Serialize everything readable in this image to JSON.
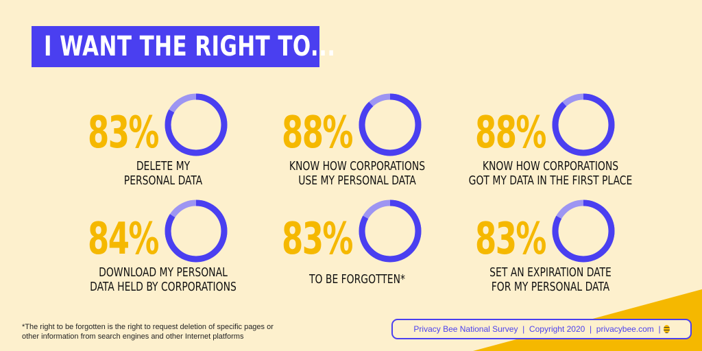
{
  "title": "I WANT THE RIGHT TO...",
  "colors": {
    "background": "#fdf0cd",
    "accent_blue": "#4a3ff0",
    "ring_light": "#9d95f2",
    "percent_yellow": "#f5b800"
  },
  "stats": [
    {
      "percent": "83%",
      "value": 83,
      "label_line1": "DELETE MY",
      "label_line2": "PERSONAL DATA"
    },
    {
      "percent": "88%",
      "value": 88,
      "label_line1": "KNOW HOW CORPORATIONS",
      "label_line2": "USE MY PERSONAL DATA"
    },
    {
      "percent": "88%",
      "value": 88,
      "label_line1": "KNOW HOW CORPORATIONS",
      "label_line2": "GOT MY DATA IN THE FIRST PLACE"
    },
    {
      "percent": "84%",
      "value": 84,
      "label_line1": "DOWNLOAD MY PERSONAL",
      "label_line2": "DATA HELD BY CORPORATIONS"
    },
    {
      "percent": "83%",
      "value": 83,
      "label_line1": "TO BE FORGOTTEN*",
      "label_line2": ""
    },
    {
      "percent": "83%",
      "value": 83,
      "label_line1": "SET AN EXPIRATION DATE",
      "label_line2": "FOR MY PERSONAL DATA"
    }
  ],
  "footnote": {
    "line1": "*The right to be forgotten is the right to request deletion of specific pages or",
    "line2": "other information from search engines and other Internet platforms"
  },
  "credit": "Privacy Bee National Survey  |  Copyright 2020  |  privacybee.com  |",
  "credit_icon": "bee-icon"
}
